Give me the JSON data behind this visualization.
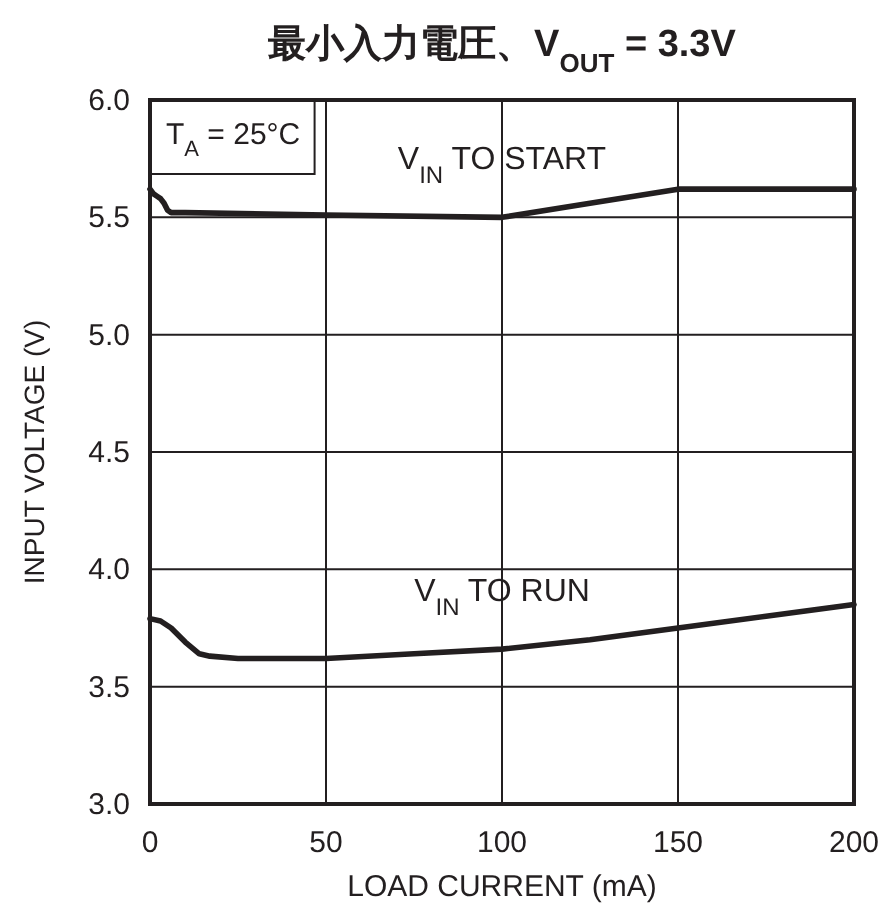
{
  "chart_data": {
    "type": "line",
    "title": "最小入力電圧、V$_{OUT}$ = 3.3V",
    "xlabel": "LOAD CURRENT (mA)",
    "ylabel": "INPUT VOLTAGE (V)",
    "annotations": [
      "T$_{A}$ = 25°C"
    ],
    "xlim": [
      0,
      200
    ],
    "xticks": [
      0,
      50,
      100,
      150,
      200
    ],
    "ylim": [
      3,
      6
    ],
    "yticks": [
      {
        "value": 3,
        "label": "3.0"
      },
      {
        "value": 3.5,
        "label": "3.5"
      },
      {
        "value": 4,
        "label": "4.0"
      },
      {
        "value": 4.5,
        "label": "4.5"
      },
      {
        "value": 5,
        "label": "5.0"
      },
      {
        "value": 5.5,
        "label": "5.5"
      },
      {
        "value": 6,
        "label": "6.0"
      }
    ],
    "grid": true,
    "legend": false,
    "line_style": "solid",
    "marker": "none",
    "series": [
      {
        "name": "V$_{IN}$ TO START",
        "color": "#231f20",
        "x": [
          0,
          1,
          2,
          3,
          4,
          5,
          6,
          10,
          50,
          100,
          125,
          150,
          175,
          200
        ],
        "values": [
          5.62,
          5.6,
          5.59,
          5.58,
          5.56,
          5.53,
          5.52,
          5.52,
          5.51,
          5.5,
          5.56,
          5.62,
          5.62,
          5.62
        ]
      },
      {
        "name": "V$_{IN}$ TO RUN",
        "color": "#231f20",
        "x": [
          0,
          3,
          6,
          10,
          14,
          17,
          25,
          50,
          75,
          100,
          125,
          150,
          175,
          200
        ],
        "values": [
          3.79,
          3.78,
          3.75,
          3.69,
          3.64,
          3.63,
          3.62,
          3.62,
          3.64,
          3.66,
          3.7,
          3.75,
          3.8,
          3.85
        ]
      }
    ]
  }
}
